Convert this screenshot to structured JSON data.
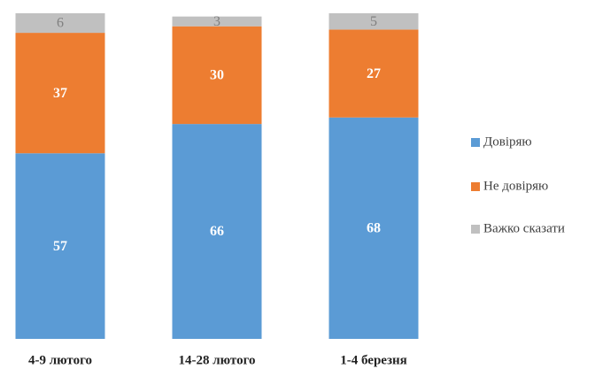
{
  "chart_data": {
    "type": "stacked_bar",
    "categories": [
      "4-9 лютого",
      "14-28 лютого",
      "1-4 березня"
    ],
    "series": [
      {
        "name": "Довіряю",
        "color": "#5b9bd5",
        "values": [
          57,
          66,
          68
        ]
      },
      {
        "name": "Не довіряю",
        "color": "#ed7d31",
        "values": [
          37,
          30,
          27
        ]
      },
      {
        "name": "Важко сказати",
        "color": "#c0c0c0",
        "values": [
          6,
          3,
          5
        ]
      }
    ],
    "ylim": [
      0,
      100
    ],
    "legend": "right"
  }
}
